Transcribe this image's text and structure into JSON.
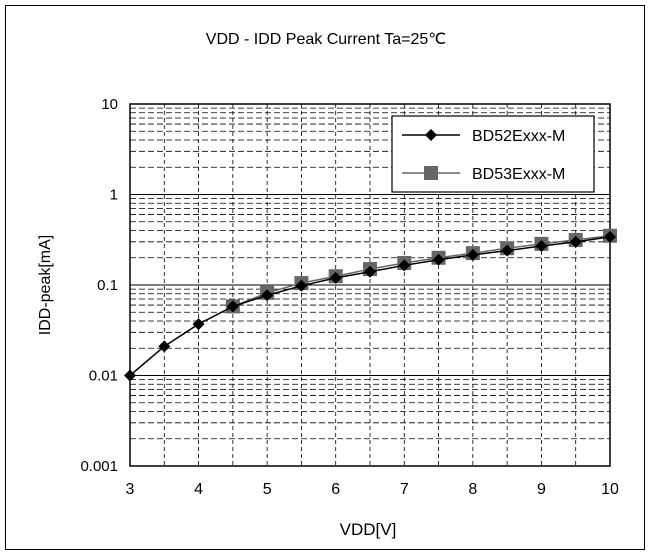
{
  "chart_data": {
    "type": "line",
    "title": "VDD - IDD Peak Current Ta=25℃",
    "xlabel": "VDD[V]",
    "ylabel": "IDD-peak[mA]",
    "xlim": [
      3,
      10
    ],
    "ylim": [
      0.001,
      10
    ],
    "yscale": "log",
    "grid": true,
    "legend_position": "top-right",
    "x_ticks": [
      "3",
      "4",
      "5",
      "6",
      "7",
      "8",
      "9",
      "10"
    ],
    "y_ticks": [
      "0.001",
      "0.01",
      "0.1",
      "1",
      "10"
    ],
    "x": [
      3,
      3.5,
      4,
      4.5,
      5,
      5.5,
      6,
      6.5,
      7,
      7.5,
      8,
      8.5,
      9,
      9.5,
      10
    ],
    "series": [
      {
        "name": "BD52Exxx-M",
        "marker": "diamond",
        "color": "#000000",
        "values": [
          0.01,
          0.021,
          0.037,
          0.058,
          0.077,
          0.098,
          0.12,
          0.14,
          0.165,
          0.19,
          0.215,
          0.24,
          0.27,
          0.3,
          0.34
        ]
      },
      {
        "name": "BD53Exxx-M",
        "marker": "square",
        "color": "#666666",
        "values": [
          null,
          null,
          null,
          0.058,
          0.082,
          0.105,
          0.125,
          0.15,
          0.175,
          0.2,
          0.225,
          0.255,
          0.285,
          0.315,
          0.35
        ]
      }
    ]
  }
}
